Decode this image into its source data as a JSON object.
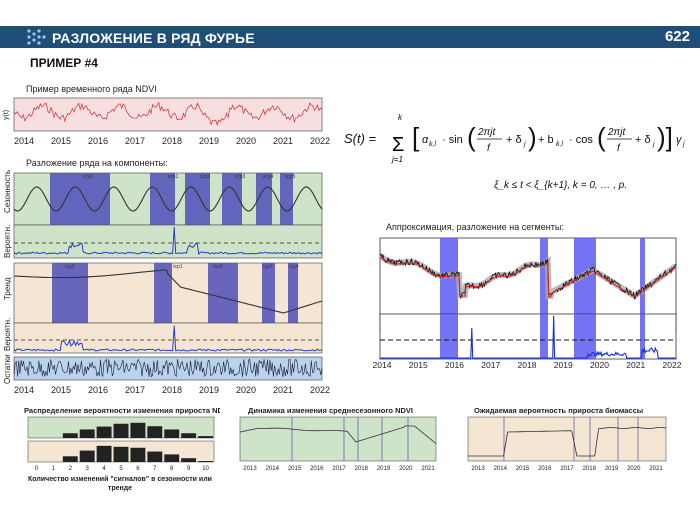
{
  "header": {
    "title": "РАЗЛОЖЕНИЕ В РЯД ФУРЬЕ",
    "page_number": "622"
  },
  "example_label": "ПРИМЕР #4",
  "panel_left": {
    "ts_title": "Пример временного ряда NDVI",
    "ts_ylabel": "y(t)",
    "decomp_title": "Разложение ряда на компоненты:",
    "label_seasonal": "Сезонность",
    "label_prob1": "Вероятн.",
    "label_trend": "Тренд",
    "label_prob2": "Вероятн.",
    "label_residuals": "Остатки",
    "years": [
      "2014",
      "2015",
      "2016",
      "2017",
      "2018",
      "2019",
      "2020",
      "2021",
      "2022"
    ],
    "seasonal_cp_labels": [
      "scp1",
      "scp1",
      "scp2",
      "scp3",
      "scp4",
      "scp5"
    ],
    "trend_cp_labels": [
      "tcp1",
      "tcp2",
      "tcp3",
      "tcp4",
      "tcp5"
    ]
  },
  "formula": {
    "lhs": "S(t) =",
    "sum_top": "k",
    "sum_bottom": "j=1",
    "body": "[ α_{k,l} · sin( 2πjt / f + δ_j ) + b_{k,l} · cos( 2πjt / f + δ_j ) ] γ_j",
    "condition": "ξ_k ≤ t < ξ_{k+1},  k = 0, … , p."
  },
  "panel_right": {
    "title": "Аппроксимация, разложение на сегменты:",
    "years": [
      "2014",
      "2015",
      "2016",
      "2017",
      "2018",
      "2019",
      "2020",
      "2021",
      "2022"
    ]
  },
  "bottom_charts": [
    {
      "title": "Распределение вероятности изменения прироста NDVI",
      "x_ticks": [
        "0",
        "1",
        "2",
        "3",
        "4",
        "5",
        "6",
        "7",
        "8",
        "9",
        "10"
      ],
      "xlabel": "Количество изменений \"сигналов\" в сезонности или тренде"
    },
    {
      "title": "Динамика изменения среднесезонного NDVI",
      "x_ticks": [
        "2013",
        "2014",
        "2015",
        "2016",
        "2017",
        "2018",
        "2019",
        "2020",
        "2021"
      ]
    },
    {
      "title": "Ожидаемая вероятность прироста биомассы",
      "x_ticks": [
        "2013",
        "2014",
        "2015",
        "2016",
        "2017",
        "2018",
        "2019",
        "2020",
        "2021"
      ]
    }
  ],
  "colors": {
    "header": "#1f4e79",
    "green_bg": "#cfe3c8",
    "blue_band": "#4f4fb8",
    "beige_bg": "#f4e6d2",
    "pink_bg": "#f7dfe0",
    "fit_red": "#d62020"
  }
}
